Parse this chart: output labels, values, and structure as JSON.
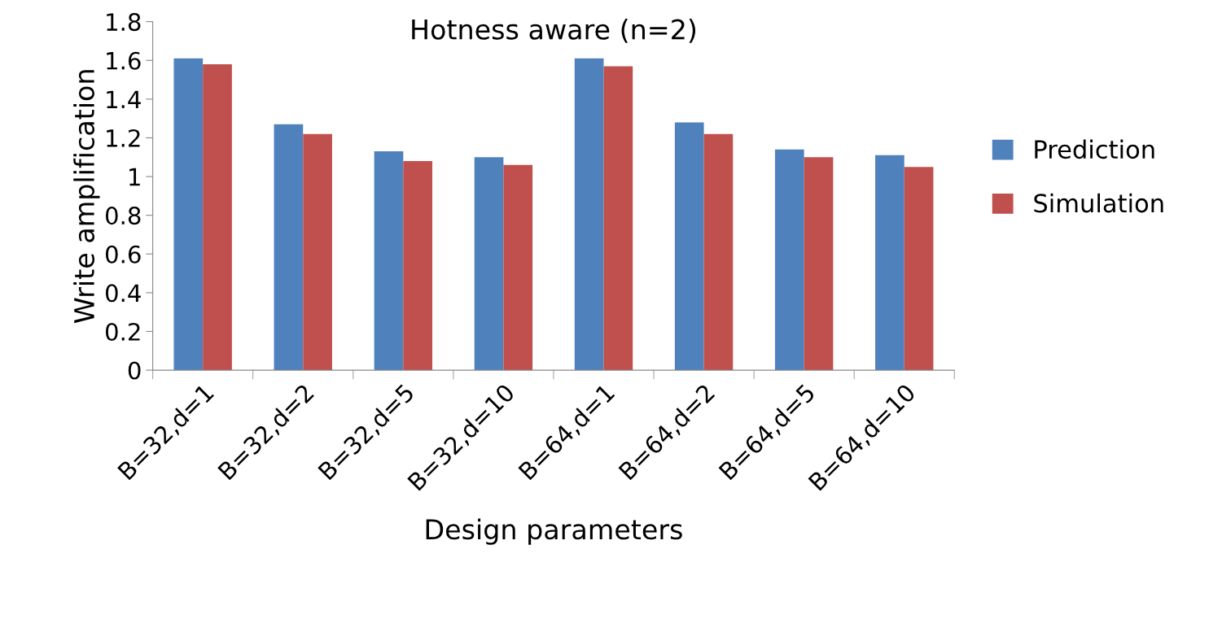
{
  "chart_data": {
    "type": "bar",
    "title": "Hotness aware (n=2)",
    "xlabel": "Design parameters",
    "ylabel": "Write amplification",
    "categories": [
      "B=32,d=1",
      "B=32,d=2",
      "B=32,d=5",
      "B=32,d=10",
      "B=64,d=1",
      "B=64,d=2",
      "B=64,d=5",
      "B=64,d=10"
    ],
    "series": [
      {
        "name": "Prediction",
        "color": "#4f81bd",
        "values": [
          1.61,
          1.27,
          1.13,
          1.1,
          1.61,
          1.28,
          1.14,
          1.11
        ]
      },
      {
        "name": "Simulation",
        "color": "#c0504d",
        "values": [
          1.58,
          1.22,
          1.08,
          1.06,
          1.57,
          1.22,
          1.1,
          1.05
        ]
      }
    ],
    "ylim": [
      0,
      1.8
    ],
    "yticks": [
      0,
      0.2,
      0.4,
      0.6,
      0.8,
      1,
      1.2,
      1.4,
      1.6,
      1.8
    ],
    "grid": false,
    "legend": "right"
  }
}
